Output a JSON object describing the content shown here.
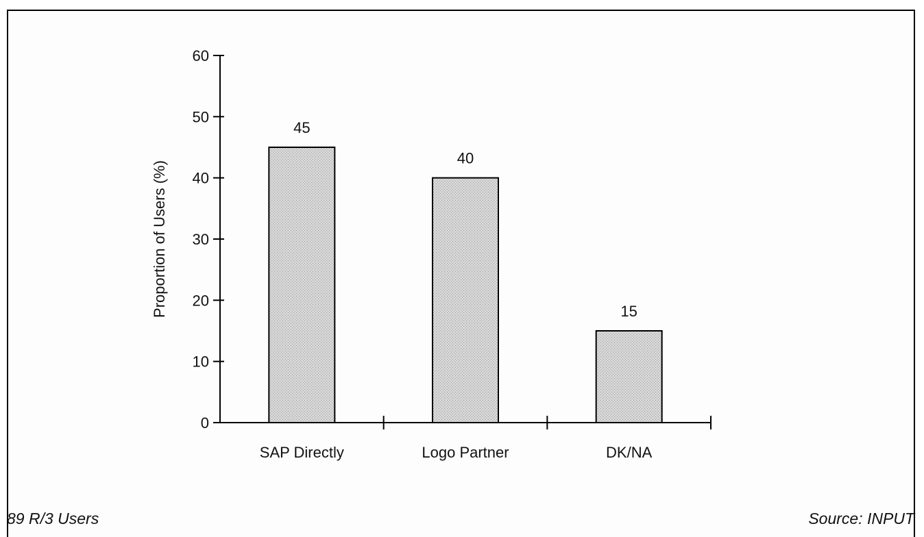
{
  "chart_data": {
    "type": "bar",
    "categories": [
      "SAP Directly",
      "Logo Partner",
      "DK/NA"
    ],
    "values": [
      45,
      40,
      15
    ],
    "value_labels": [
      "45",
      "40",
      "15"
    ],
    "title": "",
    "xlabel": "",
    "ylabel": "Proportion of Users (%)",
    "ylim": [
      0,
      60
    ],
    "yticks": [
      0,
      10,
      20,
      30,
      40,
      50,
      60
    ],
    "grid": false,
    "bar_color": "#d3d3d3"
  },
  "footnotes": {
    "left": "89 R/3 Users",
    "right": "Source: INPUT"
  }
}
